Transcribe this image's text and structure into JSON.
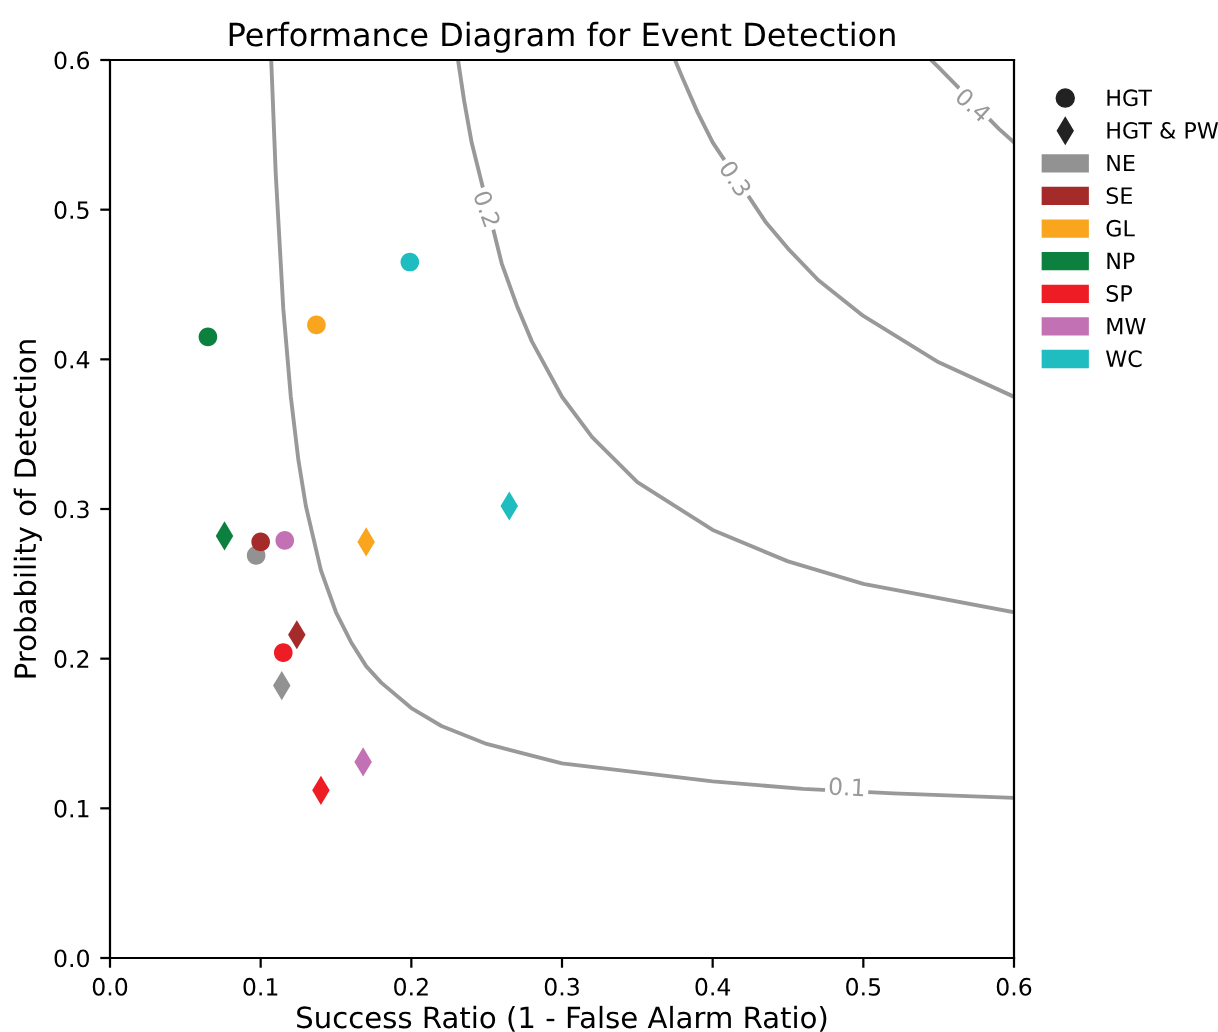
{
  "chart_data": {
    "type": "scatter",
    "title": "Performance Diagram for Event Detection",
    "xlabel": "Success Ratio (1 - False Alarm Ratio)",
    "ylabel": "Probability of Detection",
    "series": [
      {
        "name": "HGT",
        "type": "scatter",
        "marker": "circle",
        "colors": [
          "#929292",
          "#a52a2a",
          "#f9a51e",
          "#0b803f",
          "#ee1c25",
          "#c272b4",
          "#1fbdbf"
        ],
        "x": [
          0.097,
          0.1,
          0.137,
          0.065,
          0.115,
          0.116,
          0.199
        ],
        "values": [
          0.269,
          0.278,
          0.423,
          0.415,
          0.204,
          0.279,
          0.465
        ]
      },
      {
        "name": "HGT & PW",
        "type": "scatter",
        "marker": "diamond",
        "colors": [
          "#929292",
          "#a52a2a",
          "#f9a51e",
          "#0b803f",
          "#ee1c25",
          "#c272b4",
          "#1fbdbf"
        ],
        "x": [
          0.114,
          0.124,
          0.17,
          0.076,
          0.14,
          0.168,
          0.265
        ],
        "values": [
          0.182,
          0.216,
          0.278,
          0.282,
          0.112,
          0.131,
          0.302
        ]
      },
      {
        "name": "NE",
        "color": "#929292"
      },
      {
        "name": "SE",
        "color": "#a52a2a"
      },
      {
        "name": "GL",
        "color": "#f9a51e"
      },
      {
        "name": "NP",
        "color": "#0b803f"
      },
      {
        "name": "SP",
        "color": "#ee1c25"
      },
      {
        "name": "MW",
        "color": "#c272b4"
      },
      {
        "name": "WC",
        "color": "#1fbdbf"
      },
      {
        "type": "line",
        "color": "#999999",
        "x": [
          0.107,
          0.11,
          0.115,
          0.12,
          0.125,
          0.13,
          0.14,
          0.15,
          0.16,
          0.17,
          0.18,
          0.2,
          0.22,
          0.25,
          0.3,
          0.4,
          0.46,
          0.52,
          0.6
        ],
        "values": [
          0.6,
          0.524,
          0.434,
          0.375,
          0.333,
          0.302,
          0.259,
          0.231,
          0.211,
          0.195,
          0.184,
          0.167,
          0.155,
          0.143,
          0.13,
          0.118,
          0.113,
          0.11,
          0.107
        ]
      },
      {
        "type": "line",
        "color": "#999999",
        "x": [
          0.231,
          0.235,
          0.24,
          0.26,
          0.27,
          0.28,
          0.3,
          0.32,
          0.35,
          0.4,
          0.45,
          0.5,
          0.6
        ],
        "values": [
          0.6,
          0.573,
          0.545,
          0.464,
          0.436,
          0.412,
          0.375,
          0.348,
          0.318,
          0.286,
          0.265,
          0.25,
          0.231
        ]
      },
      {
        "type": "line",
        "color": "#999999",
        "x": [
          0.375,
          0.38,
          0.39,
          0.4,
          0.435,
          0.45,
          0.47,
          0.5,
          0.55,
          0.6
        ],
        "values": [
          0.6,
          0.588,
          0.565,
          0.545,
          0.492,
          0.474,
          0.453,
          0.429,
          0.398,
          0.375
        ]
      },
      {
        "type": "line",
        "color": "#999999",
        "x": [
          0.545,
          0.55,
          0.59,
          0.6
        ],
        "values": [
          0.6,
          0.595,
          0.554,
          0.545
        ]
      }
    ],
    "annotations": [
      {
        "text": "0.1",
        "x": 0.489,
        "y": 0.113
      },
      {
        "text": "0.2",
        "x": 0.249,
        "y": 0.5
      },
      {
        "text": "0.3",
        "x": 0.414,
        "y": 0.52
      },
      {
        "text": "0.4",
        "x": 0.572,
        "y": 0.569
      }
    ],
    "xlim": [
      0.0,
      0.6
    ],
    "ylim": [
      0.0,
      0.6
    ],
    "xticks": [
      {
        "value": 0,
        "label": "0.0"
      },
      0.1,
      0.2,
      0.3,
      0.4,
      0.5,
      0.6
    ],
    "yticks": [
      {
        "value": 0,
        "label": "0.0"
      },
      0.1,
      0.2,
      0.3,
      0.4,
      0.5,
      0.6
    ],
    "legend": "top right"
  }
}
